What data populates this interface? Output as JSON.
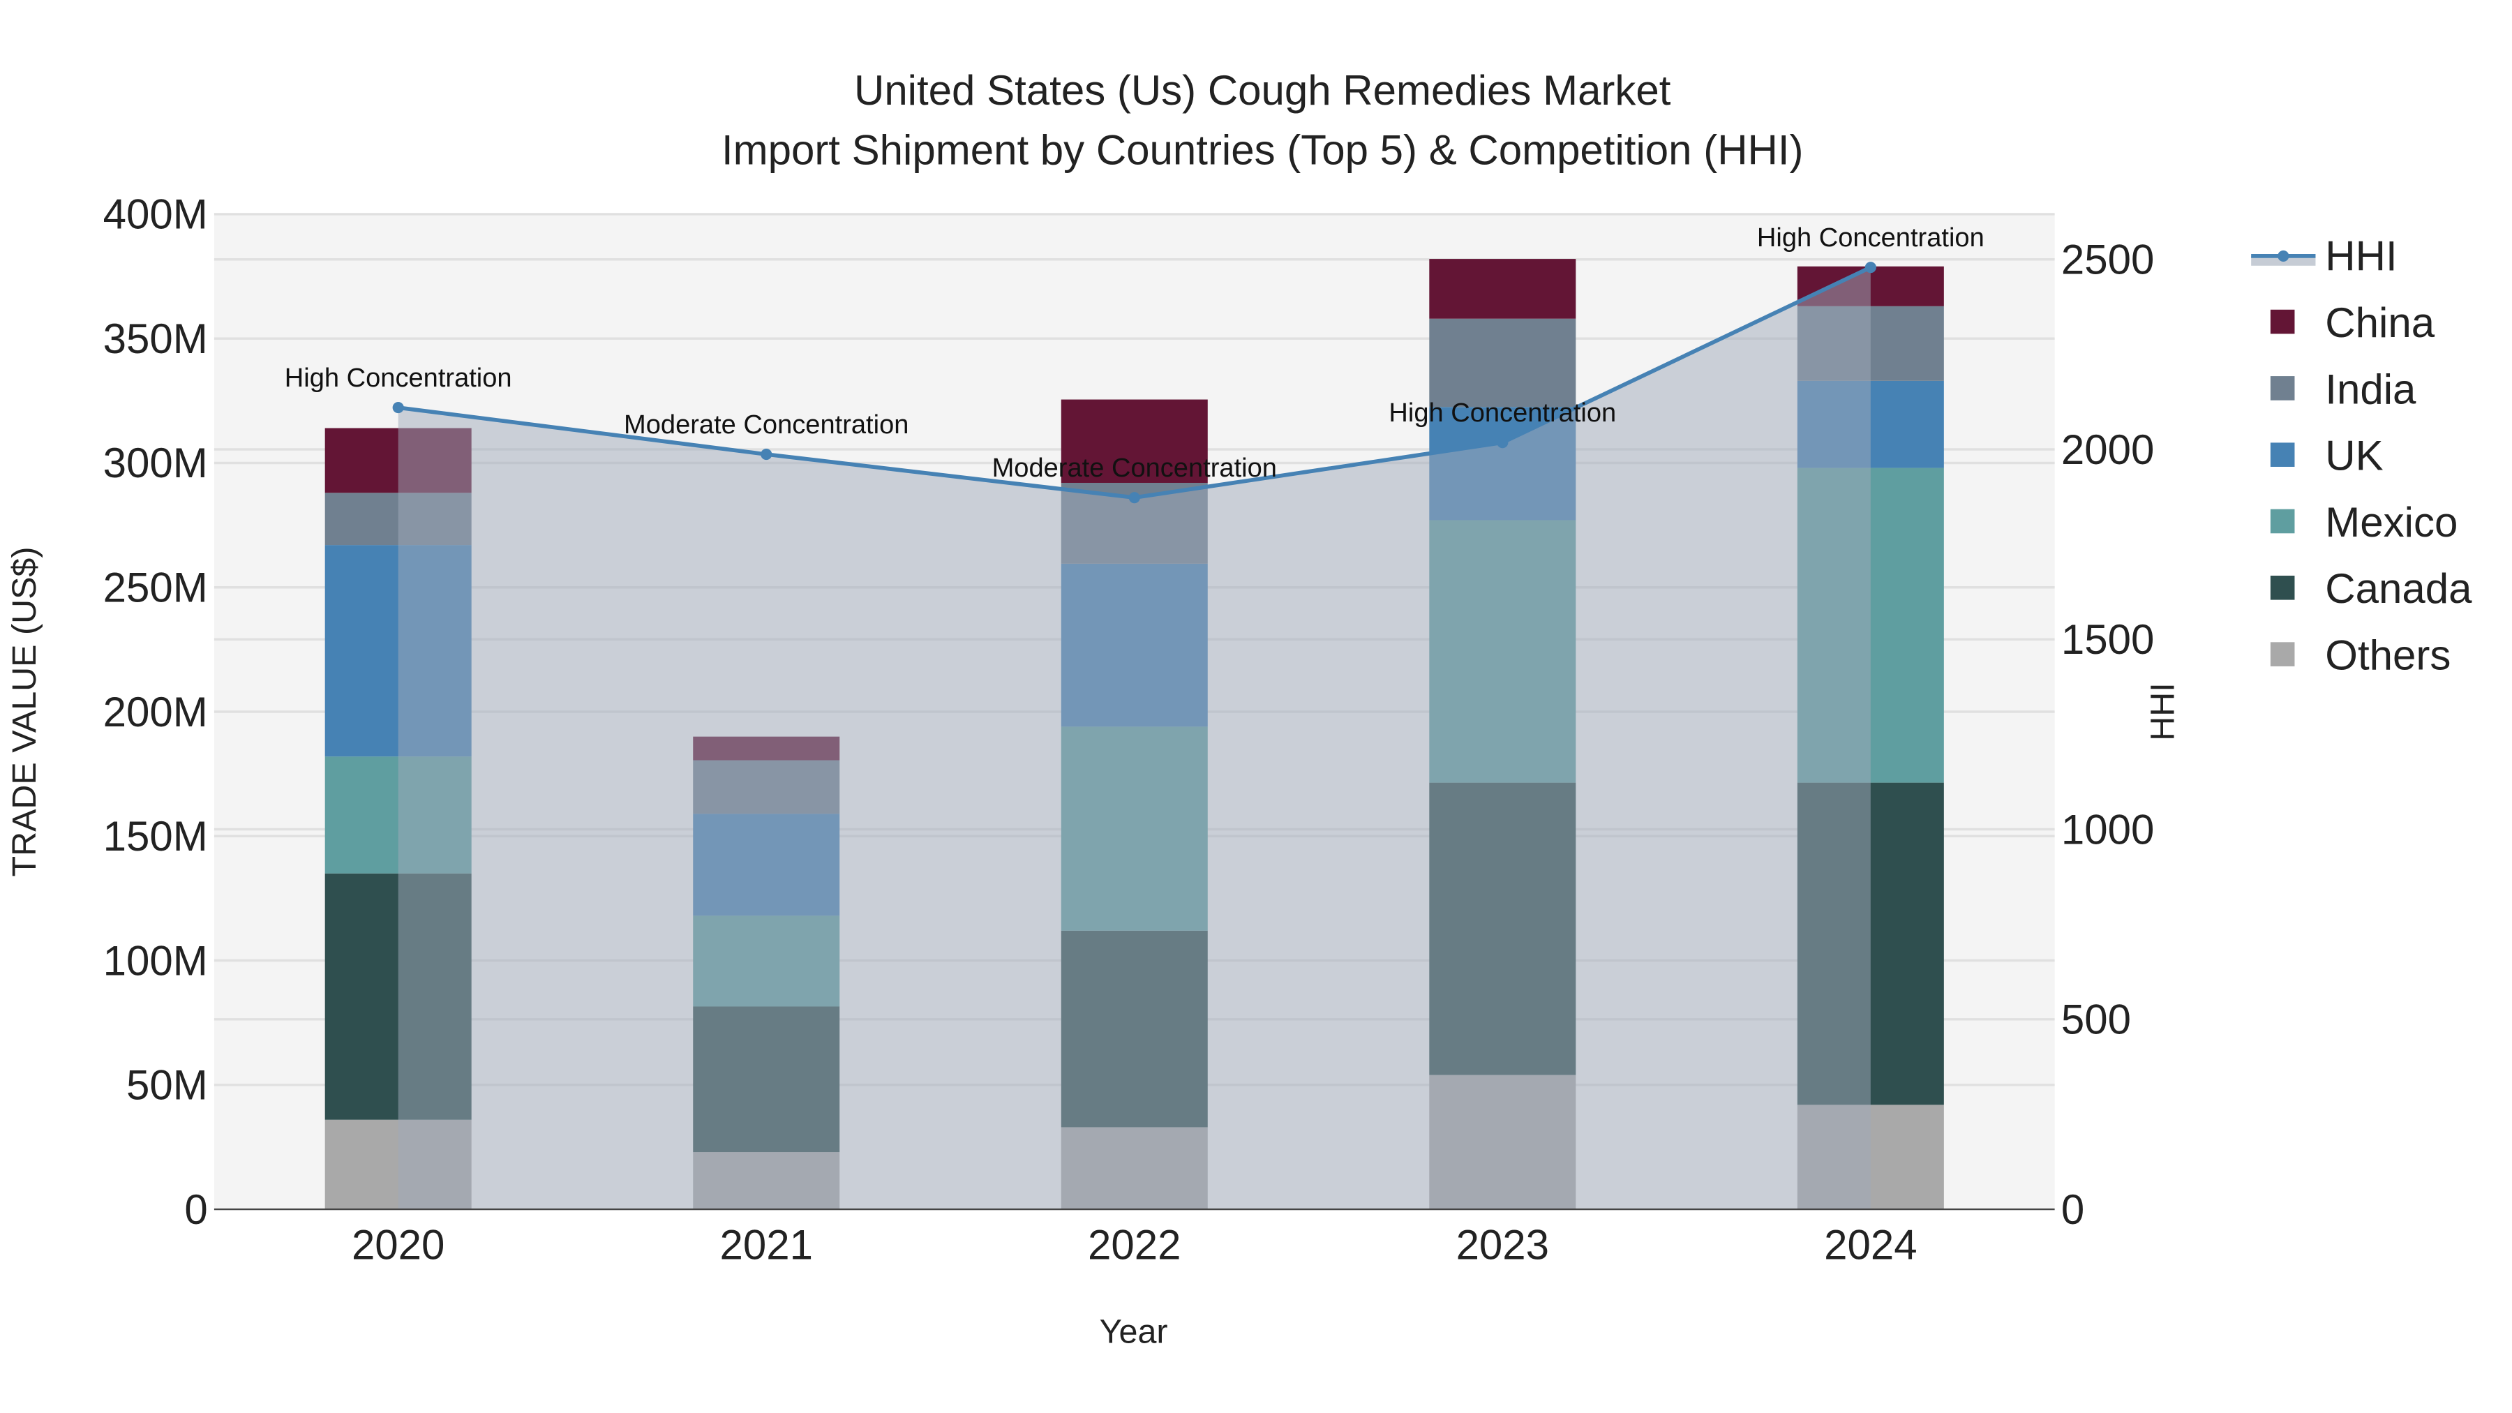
{
  "chart_data": {
    "type": "bar",
    "stacked": true,
    "title": "United States (Us) Cough Remedies Market",
    "subtitle": "Import Shipment by Countries (Top 5) & Competition (HHI)",
    "xlabel": "Year",
    "ylabel": "TRADE VALUE (US$)",
    "y2label": "HHI",
    "categories": [
      "2020",
      "2021",
      "2022",
      "2023",
      "2024"
    ],
    "ylim": [
      0,
      400
    ],
    "y_unit": "M",
    "yticks": [
      "0",
      "50M",
      "100M",
      "150M",
      "200M",
      "250M",
      "300M",
      "350M",
      "400M"
    ],
    "y2lim": [
      0,
      2619
    ],
    "y2ticks": [
      "0",
      "500",
      "1000",
      "1500",
      "2000",
      "2500"
    ],
    "grid": true,
    "legend_position": "right",
    "series": [
      {
        "name": "Others",
        "color": "#a9a9a9",
        "values": [
          36,
          23,
          33,
          54,
          42
        ]
      },
      {
        "name": "Canada",
        "color": "#2f4f4f",
        "values": [
          99,
          58.5,
          79,
          117.5,
          129.5
        ]
      },
      {
        "name": "Mexico",
        "color": "#5f9ea0",
        "values": [
          47,
          36.5,
          82,
          105.5,
          126.5
        ]
      },
      {
        "name": "UK",
        "color": "#4682b4",
        "values": [
          85,
          41,
          65.5,
          45.5,
          35
        ]
      },
      {
        "name": "India",
        "color": "#708090",
        "values": [
          21,
          21.5,
          32.5,
          35.5,
          30
        ]
      },
      {
        "name": "China",
        "color": "#631535",
        "values": [
          26,
          9.5,
          33.5,
          24,
          16
        ]
      }
    ],
    "hhi": {
      "name": "HHI",
      "color": "#4682b4",
      "values": [
        2110,
        1987,
        1873,
        2018,
        2479
      ],
      "annotations": [
        "High Concentration",
        "Moderate Concentration",
        "Moderate Concentration",
        "High Concentration",
        "High Concentration"
      ]
    },
    "legend": [
      "HHI",
      "China",
      "India",
      "UK",
      "Mexico",
      "Canada",
      "Others"
    ]
  }
}
